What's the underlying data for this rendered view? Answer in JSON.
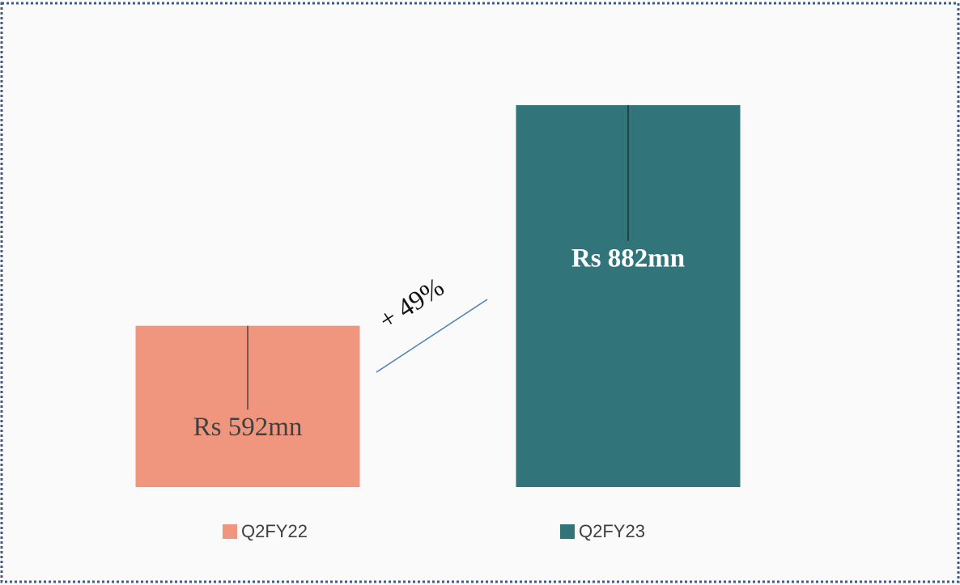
{
  "chart_data": {
    "type": "bar",
    "categories": [
      "Q2FY22",
      "Q2FY23"
    ],
    "values": [
      592,
      882
    ],
    "value_labels": [
      "Rs 592mn",
      "Rs 882mn"
    ],
    "colors": [
      "#f0967f",
      "#31747a"
    ],
    "ylim": [
      380,
      900
    ],
    "annotation": "+ 49%"
  }
}
